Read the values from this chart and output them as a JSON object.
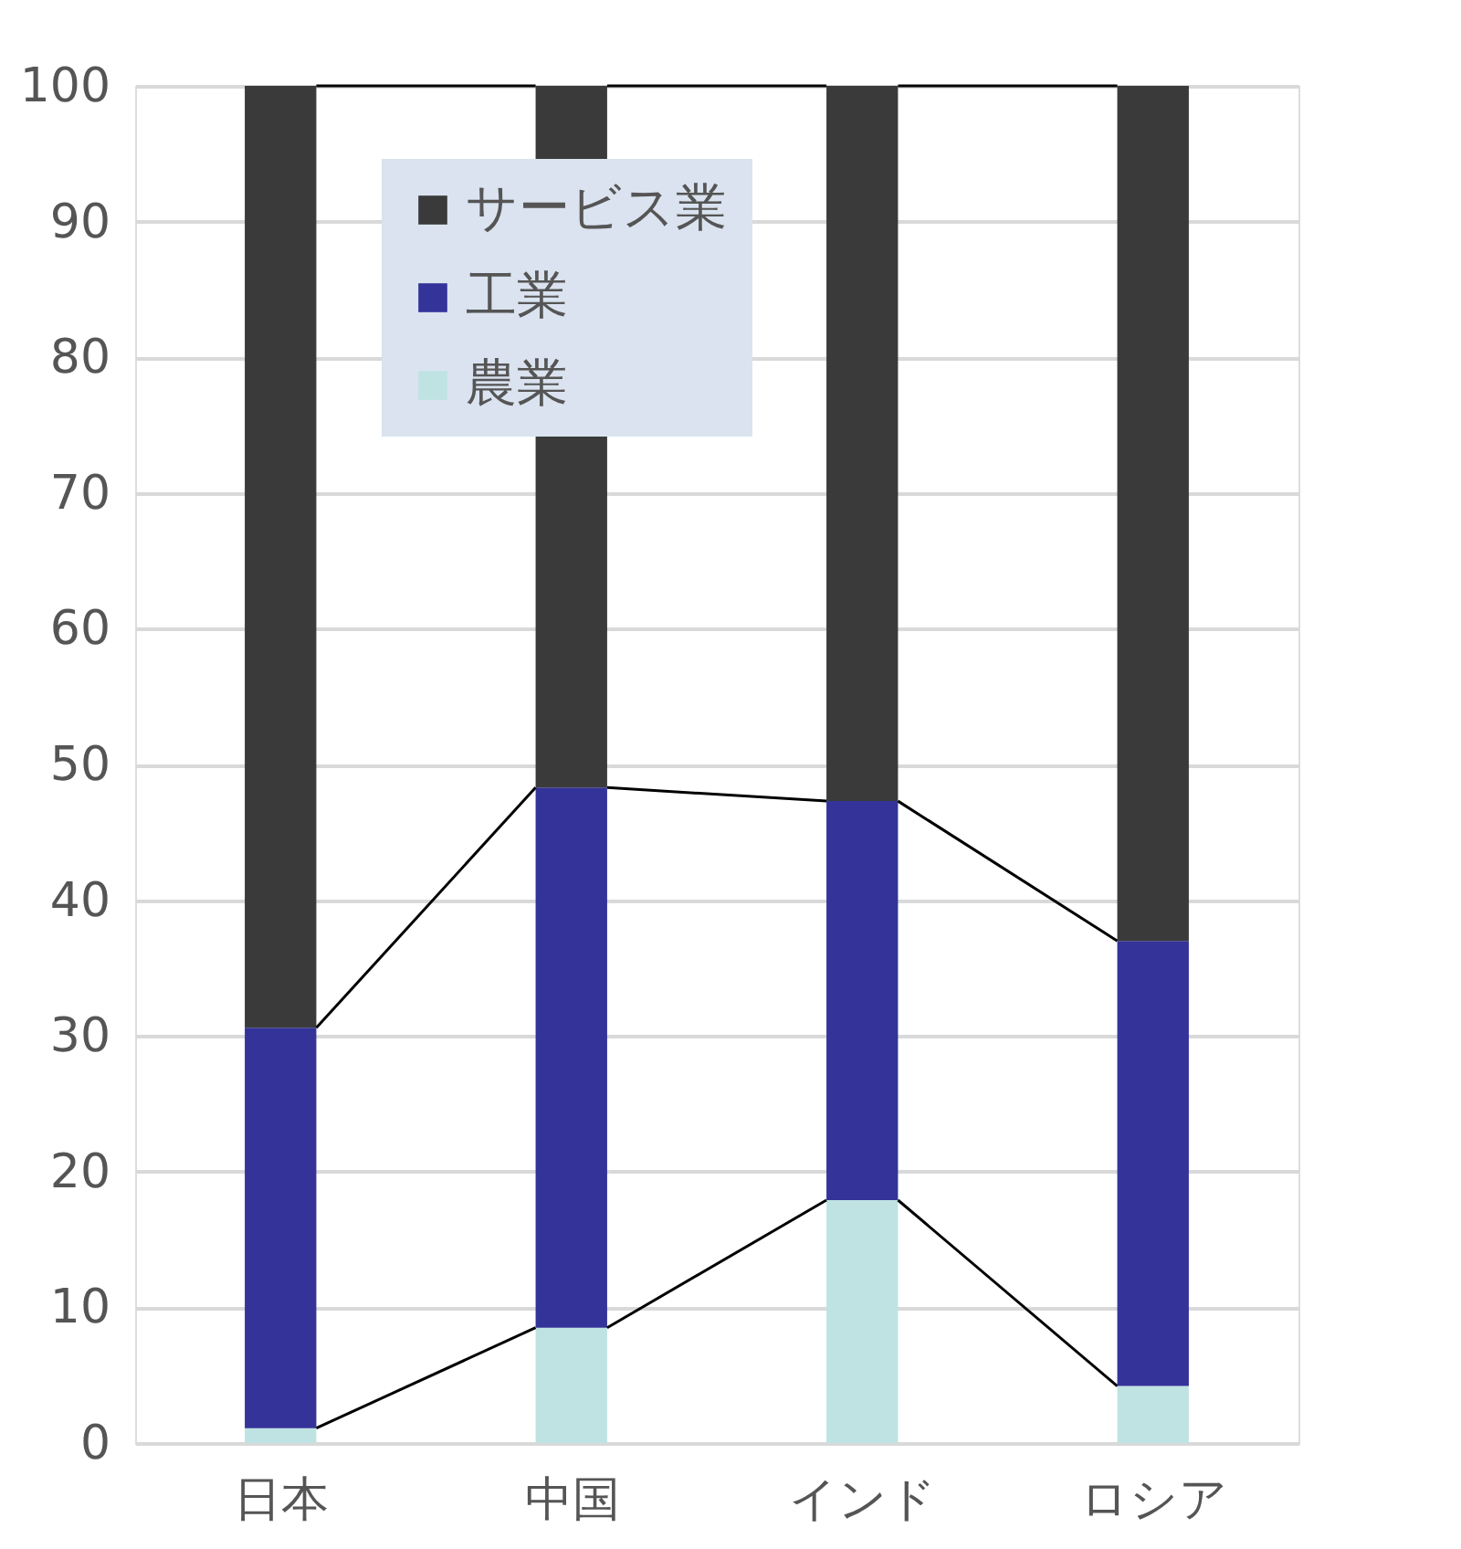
{
  "chart_data": {
    "type": "bar",
    "stacked": true,
    "categories": [
      "日本",
      "中国",
      "インド",
      "ロシア"
    ],
    "series": [
      {
        "name": "農業",
        "color": "#bfe3e3",
        "values": [
          1.1,
          8.5,
          17.9,
          4.2
        ]
      },
      {
        "name": "工業",
        "color": "#333399",
        "values": [
          29.5,
          39.8,
          29.4,
          32.8
        ]
      },
      {
        "name": "サービス業",
        "color": "#3a3a3a",
        "values": [
          69.4,
          51.7,
          52.7,
          63.0
        ]
      }
    ],
    "ylim": [
      0,
      100
    ],
    "yticks": [
      0,
      10,
      20,
      30,
      40,
      50,
      60,
      70,
      80,
      90,
      100
    ],
    "grid": "y",
    "legend": "top left"
  }
}
